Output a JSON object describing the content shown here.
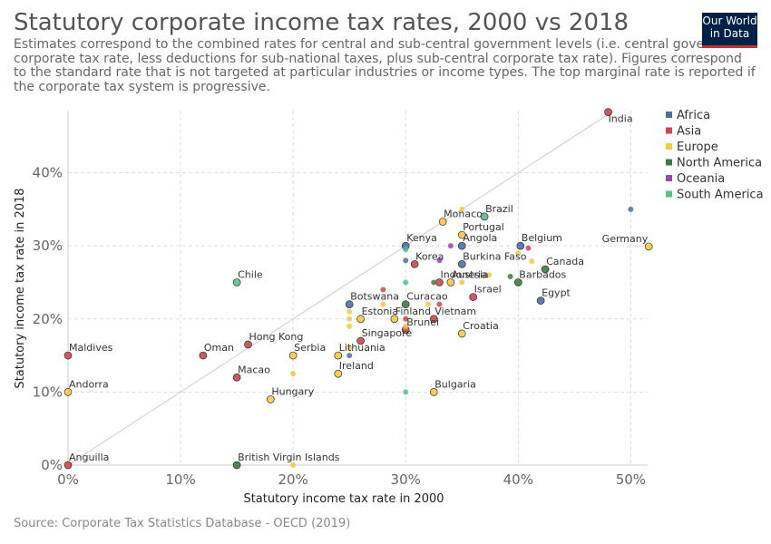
{
  "header": {
    "title": "Statutory corporate income tax rates, 2000 vs 2018",
    "subtitle": "Estimates correspond to the combined rates for central and sub-central government levels (i.e. central government corporate tax rate, less deductions for sub-national taxes, plus sub-central corporate tax rate). Figures correspond to the standard rate that is not targeted at particular industries or income types. The top marginal rate is reported if the corporate tax system is progressive.",
    "logo": [
      "Our World",
      "in Data"
    ]
  },
  "footer": {
    "source": "Source: Corporate Tax Statistics Database - OECD (2019)"
  },
  "chart_data": {
    "type": "scatter",
    "xlabel": "Statutory income tax rate in 2000",
    "ylabel": "Statutory income tax rate in 2018",
    "xlim": [
      0,
      51.5
    ],
    "ylim": [
      0,
      48.5
    ],
    "x_ticks": [
      0,
      10,
      20,
      30,
      40,
      50
    ],
    "y_ticks": [
      0,
      10,
      20,
      30,
      40
    ],
    "tick_suffix": "%",
    "grid": true,
    "diagonal_reference_line": true,
    "legend_position": "right",
    "legend": [
      {
        "name": "Africa",
        "color": "#4c6ea8"
      },
      {
        "name": "Asia",
        "color": "#c9474e"
      },
      {
        "name": "Europe",
        "color": "#f5c842"
      },
      {
        "name": "North America",
        "color": "#3d7a3f"
      },
      {
        "name": "Oceania",
        "color": "#9f44b0"
      },
      {
        "name": "South America",
        "color": "#55c08a"
      }
    ],
    "points": [
      {
        "label": "India",
        "region": "Asia",
        "x": 48,
        "y": 48.3
      },
      {
        "label": "Germany",
        "region": "Europe",
        "x": 51.6,
        "y": 29.9
      },
      {
        "label": "",
        "region": "Africa",
        "x": 50,
        "y": 35
      },
      {
        "label": "Brazil",
        "region": "South America",
        "x": 37,
        "y": 34
      },
      {
        "label": "Monaco",
        "region": "Europe",
        "x": 33.3,
        "y": 33.3
      },
      {
        "label": "",
        "region": "Europe",
        "x": 35,
        "y": 35
      },
      {
        "label": "Portugal",
        "region": "Europe",
        "x": 35,
        "y": 31.5
      },
      {
        "label": "Angola",
        "region": "Africa",
        "x": 35,
        "y": 30
      },
      {
        "label": "",
        "region": "Oceania",
        "x": 34,
        "y": 30
      },
      {
        "label": "Kenya",
        "region": "Africa",
        "x": 30,
        "y": 30
      },
      {
        "label": "",
        "region": "South America",
        "x": 30,
        "y": 29.5
      },
      {
        "label": "Belgium",
        "region": "Africa",
        "x": 40.2,
        "y": 30
      },
      {
        "label": "",
        "region": "Asia",
        "x": 40.9,
        "y": 29.7
      },
      {
        "label": "",
        "region": "Europe",
        "x": 40,
        "y": 29
      },
      {
        "label": "Canada",
        "region": "North America",
        "x": 42.4,
        "y": 26.8
      },
      {
        "label": "",
        "region": "Europe",
        "x": 41.2,
        "y": 27.9
      },
      {
        "label": "Barbados",
        "region": "North America",
        "x": 40,
        "y": 25
      },
      {
        "label": "",
        "region": "North America",
        "x": 39.3,
        "y": 25.8
      },
      {
        "label": "",
        "region": "Europe",
        "x": 37.4,
        "y": 26
      },
      {
        "label": "Korea",
        "region": "Asia",
        "x": 30.8,
        "y": 27.5
      },
      {
        "label": "",
        "region": "Africa",
        "x": 30,
        "y": 28
      },
      {
        "label": "",
        "region": "Oceania",
        "x": 33,
        "y": 28
      },
      {
        "label": "Burkina Faso",
        "region": "Africa",
        "x": 35,
        "y": 27.5
      },
      {
        "label": "Indonesia",
        "region": "Asia",
        "x": 33,
        "y": 25
      },
      {
        "label": "Austria",
        "region": "Europe",
        "x": 34,
        "y": 25
      },
      {
        "label": "",
        "region": "North America",
        "x": 32.5,
        "y": 25
      },
      {
        "label": "",
        "region": "South America",
        "x": 30,
        "y": 25
      },
      {
        "label": "",
        "region": "Europe",
        "x": 35,
        "y": 25
      },
      {
        "label": "Egypt",
        "region": "Africa",
        "x": 42,
        "y": 22.5
      },
      {
        "label": "Israel",
        "region": "Asia",
        "x": 36,
        "y": 23
      },
      {
        "label": "Chile",
        "region": "South America",
        "x": 15,
        "y": 25
      },
      {
        "label": "Botswana",
        "region": "Africa",
        "x": 25,
        "y": 22
      },
      {
        "label": "",
        "region": "Asia",
        "x": 28,
        "y": 24
      },
      {
        "label": "Curacao",
        "region": "North America",
        "x": 30,
        "y": 22
      },
      {
        "label": "",
        "region": "Asia",
        "x": 33,
        "y": 22
      },
      {
        "label": "",
        "region": "Europe",
        "x": 32,
        "y": 22
      },
      {
        "label": "Estonia",
        "region": "Europe",
        "x": 26,
        "y": 20
      },
      {
        "label": "Finland",
        "region": "Europe",
        "x": 29,
        "y": 20
      },
      {
        "label": "",
        "region": "Europe",
        "x": 25,
        "y": 21
      },
      {
        "label": "",
        "region": "Europe",
        "x": 25,
        "y": 20
      },
      {
        "label": "",
        "region": "Europe",
        "x": 25,
        "y": 19
      },
      {
        "label": "",
        "region": "Europe",
        "x": 28,
        "y": 22
      },
      {
        "label": "Vietnam",
        "region": "Asia",
        "x": 32.5,
        "y": 20
      },
      {
        "label": "Brunei",
        "region": "Asia",
        "x": 30,
        "y": 18.5
      },
      {
        "label": "",
        "region": "Asia",
        "x": 30,
        "y": 20
      },
      {
        "label": "",
        "region": "Europe",
        "x": 30,
        "y": 19
      },
      {
        "label": "Singapore",
        "region": "Asia",
        "x": 26,
        "y": 17
      },
      {
        "label": "Croatia",
        "region": "Europe",
        "x": 35,
        "y": 18
      },
      {
        "label": "Hong Kong",
        "region": "Asia",
        "x": 16,
        "y": 16.5
      },
      {
        "label": "Oman",
        "region": "Asia",
        "x": 12,
        "y": 15
      },
      {
        "label": "Maldives",
        "region": "Asia",
        "x": 0,
        "y": 15
      },
      {
        "label": "Serbia",
        "region": "Europe",
        "x": 20,
        "y": 15
      },
      {
        "label": "Lithuania",
        "region": "Europe",
        "x": 24,
        "y": 15
      },
      {
        "label": "",
        "region": "Africa",
        "x": 25,
        "y": 15
      },
      {
        "label": "",
        "region": "Europe",
        "x": 25,
        "y": 16
      },
      {
        "label": "Ireland",
        "region": "Europe",
        "x": 24,
        "y": 12.5
      },
      {
        "label": "",
        "region": "Europe",
        "x": 20,
        "y": 12.5
      },
      {
        "label": "Macao",
        "region": "Asia",
        "x": 15,
        "y": 12
      },
      {
        "label": "Andorra",
        "region": "Europe",
        "x": 0,
        "y": 10
      },
      {
        "label": "Hungary",
        "region": "Europe",
        "x": 18,
        "y": 9
      },
      {
        "label": "Bulgaria",
        "region": "Europe",
        "x": 32.5,
        "y": 10
      },
      {
        "label": "",
        "region": "South America",
        "x": 30,
        "y": 10
      },
      {
        "label": "Anguilla",
        "region": "Asia",
        "x": 0,
        "y": 0
      },
      {
        "label": "British Virgin Islands",
        "region": "North America",
        "x": 15,
        "y": 0
      },
      {
        "label": "",
        "region": "Europe",
        "x": 20,
        "y": 0
      }
    ]
  }
}
